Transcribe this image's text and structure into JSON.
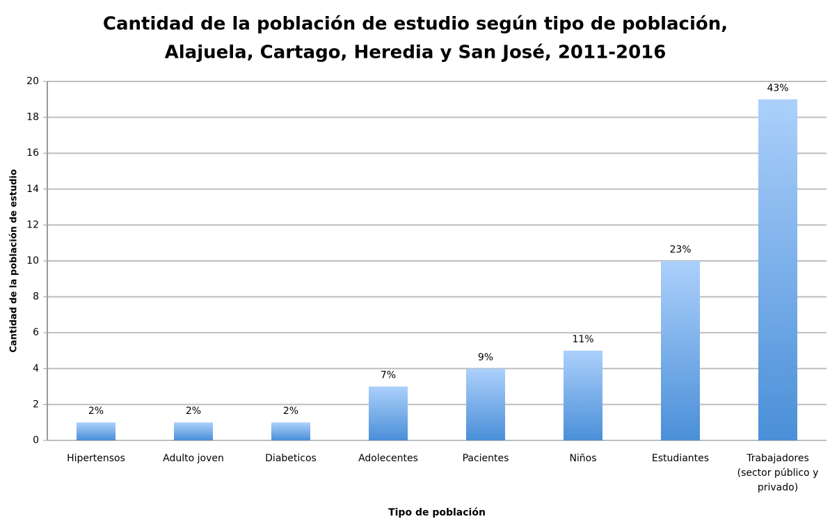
{
  "chart_data": {
    "type": "bar",
    "title": [
      "Cantidad de la población de estudio según tipo de población,",
      "Alajuela, Cartago, Heredia y San José, 2011-2016"
    ],
    "x_label": "Tipo de población",
    "y_label": "Cantidad de la población de estudio",
    "categories": [
      "Hipertensos",
      "Adulto joven",
      "Diabeticos",
      "Adolecentes",
      "Pacientes",
      "Niños",
      "Estudiantes",
      "Trabajadores (sector público y privado)"
    ],
    "values": [
      1,
      1,
      1,
      3,
      4,
      5,
      10,
      19
    ],
    "data_labels": [
      "2%",
      "2%",
      "2%",
      "7%",
      "9%",
      "11%",
      "23%",
      "43%"
    ],
    "color": [
      "#acd0fb",
      "#4a8fd8"
    ],
    "ylim": [
      0,
      20
    ],
    "yticks": [
      0,
      2,
      4,
      6,
      8,
      10,
      12,
      14,
      16,
      18,
      20
    ],
    "grid": true
  }
}
